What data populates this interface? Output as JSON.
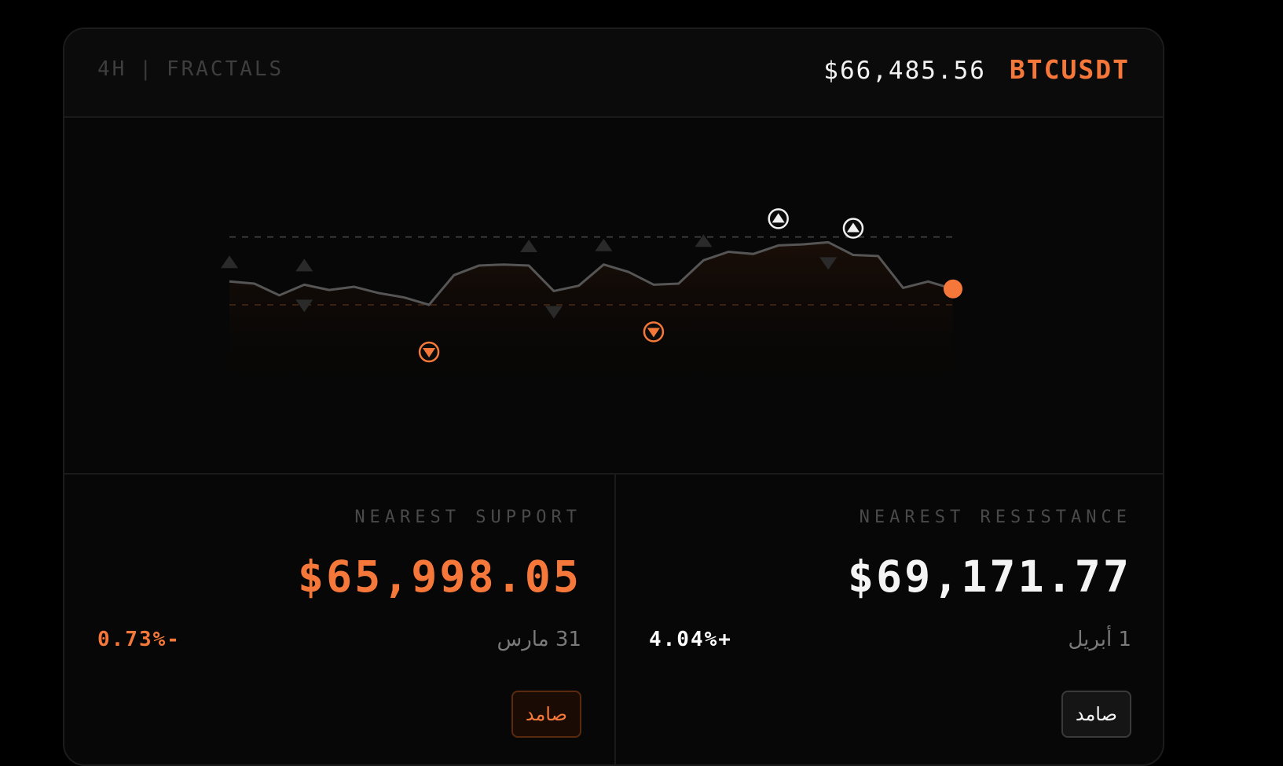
{
  "header": {
    "timeframe": "4H",
    "separator": "|",
    "indicator": "FRACTALS",
    "price": "$66,485.56",
    "symbol": "BTCUSDT"
  },
  "colors": {
    "accent": "#f5783a",
    "line": "#555555",
    "background": "#000000",
    "card": "#070707"
  },
  "chart_data": {
    "type": "line",
    "values": [
      62,
      60,
      49,
      59,
      54,
      57,
      51,
      47,
      40,
      68,
      77,
      78,
      77,
      53,
      58,
      78,
      71,
      59,
      60,
      82,
      90,
      88,
      96,
      97,
      99,
      87,
      86,
      56,
      62,
      55
    ],
    "resistance_level": 104,
    "support_level": 40,
    "ylim": [
      0,
      130
    ],
    "fractals_up_major": [
      22,
      25
    ],
    "fractals_down_major": [
      8,
      17
    ],
    "fractals_up_minor": [
      0,
      3,
      12,
      15,
      19
    ],
    "fractals_down_minor": [
      3,
      13,
      24
    ],
    "current_point_index": 29
  },
  "support": {
    "label": "NEAREST SUPPORT",
    "value": "$65,998.05",
    "change": "0.73%-",
    "date": "31 مارس",
    "button": "صامد"
  },
  "resistance": {
    "label": "NEAREST RESISTANCE",
    "value": "$69,171.77",
    "change": "4.04%+",
    "date": "1 أبريل",
    "button": "صامد"
  }
}
